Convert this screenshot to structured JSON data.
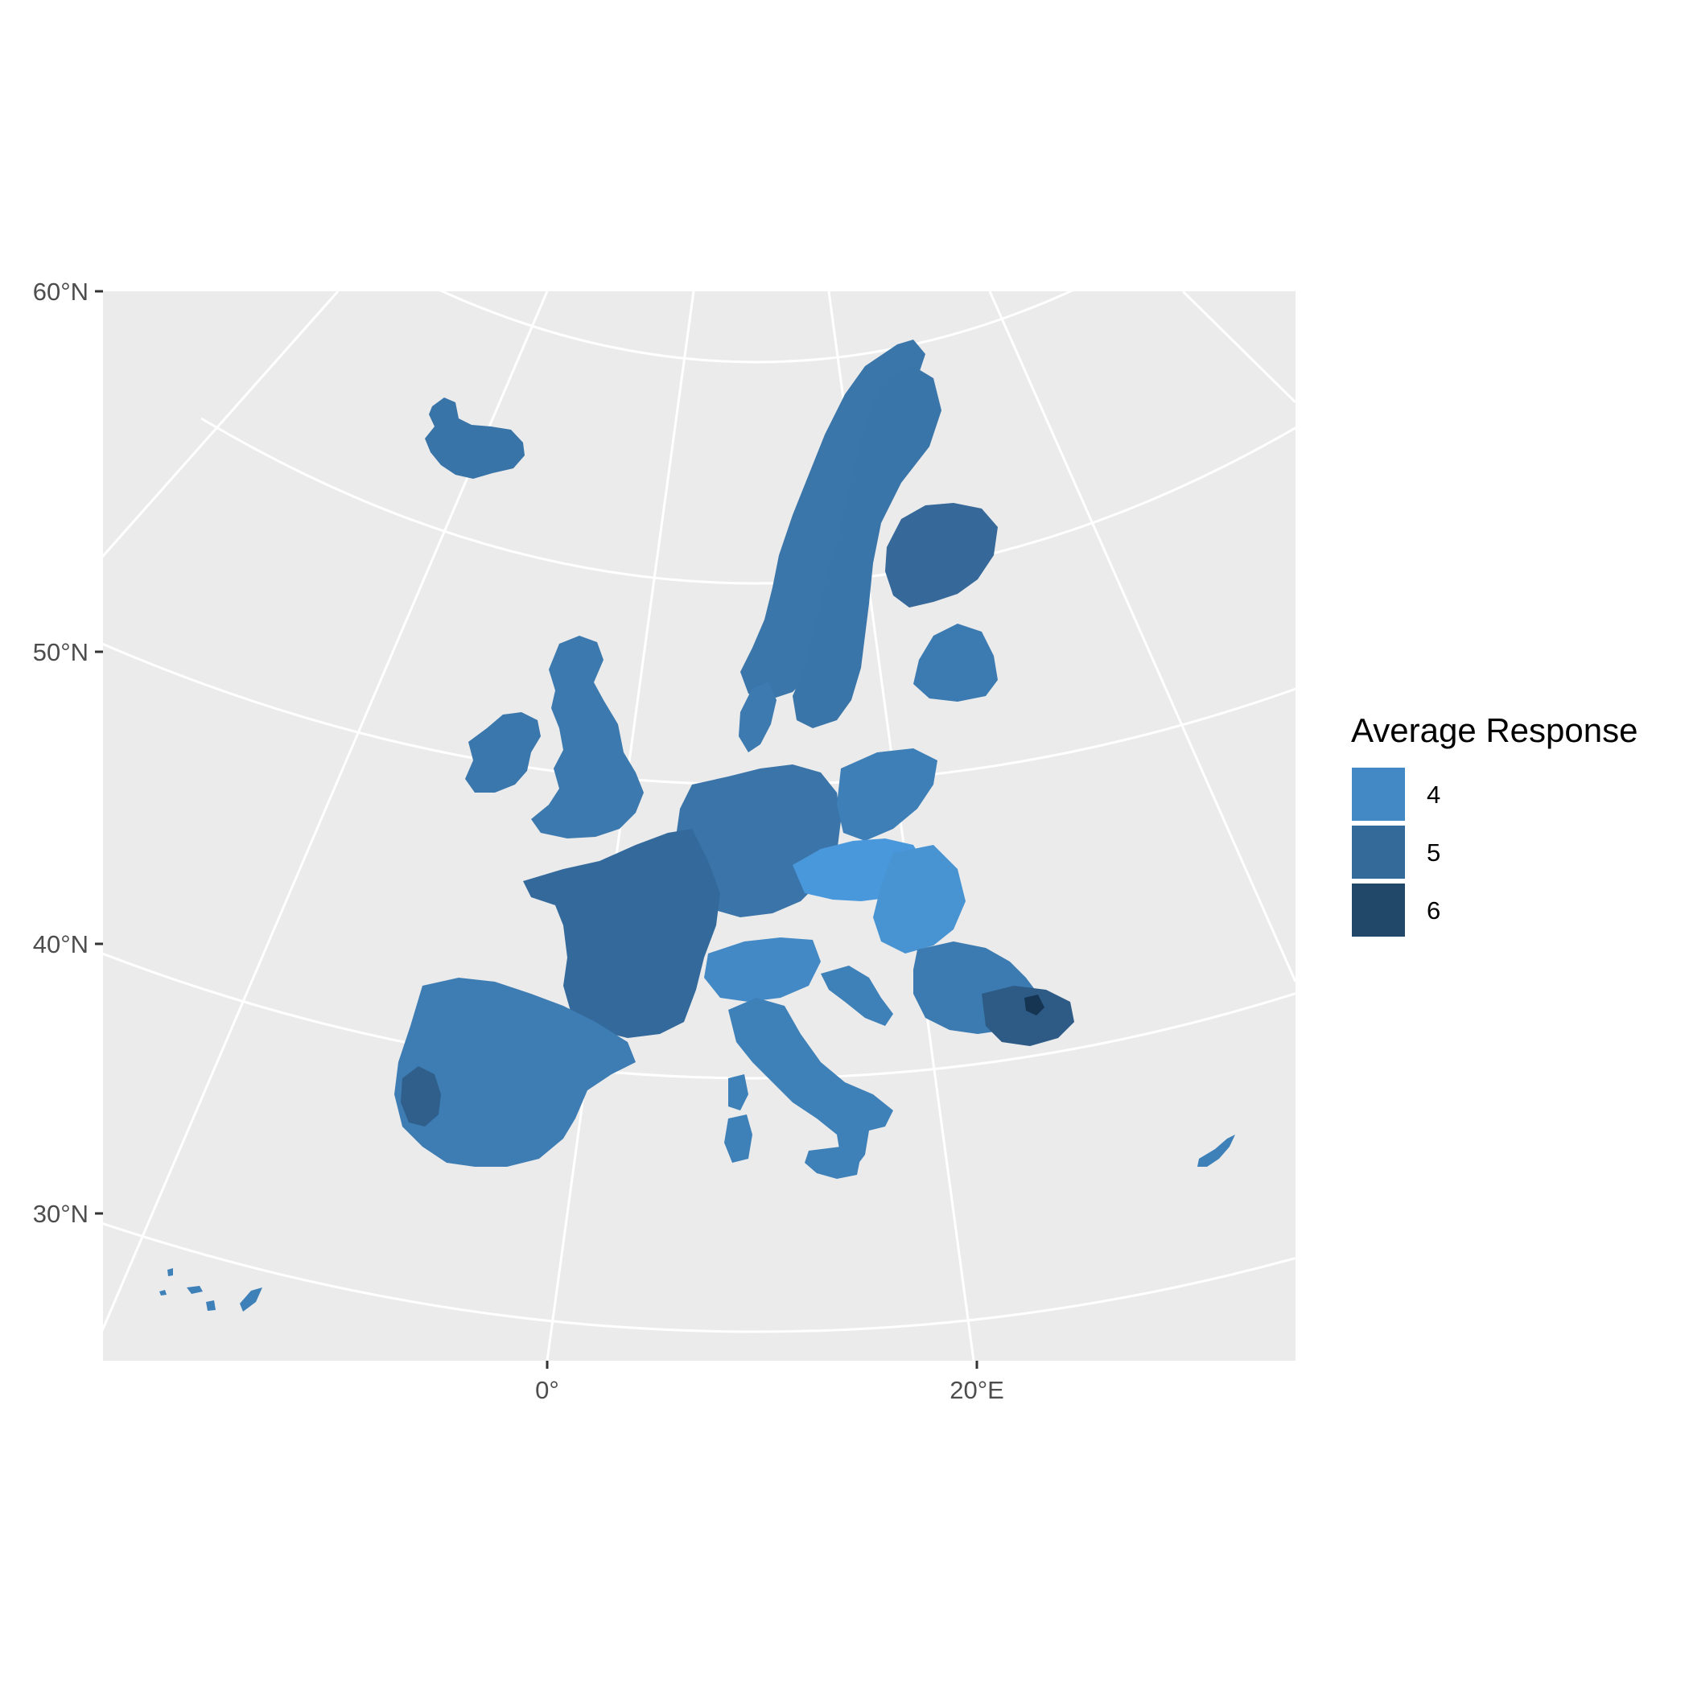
{
  "map": {
    "projection": "conic",
    "latitude_labels": [
      "60°N",
      "50°N",
      "40°N",
      "30°N"
    ],
    "longitude_labels": [
      "0°",
      "20°E"
    ],
    "background_color": "#ebebeb",
    "grid_color": "#ffffff"
  },
  "legend": {
    "title": "Average Response",
    "items": [
      {
        "label": "4",
        "color": "#4389c6"
      },
      {
        "label": "5",
        "color": "#336a99"
      },
      {
        "label": "6",
        "color": "#214869"
      }
    ]
  },
  "regions": [
    {
      "name": "Iceland",
      "fill": "#3874a8"
    },
    {
      "name": "Ireland",
      "fill": "#3a77ac"
    },
    {
      "name": "Great Britain",
      "fill": "#3b79ae"
    },
    {
      "name": "Norway",
      "fill": "#3b76aa"
    },
    {
      "name": "Sweden",
      "fill": "#3a75a9"
    },
    {
      "name": "Finland",
      "fill": "#36689a"
    },
    {
      "name": "Estonia/Latvia/Lithuania",
      "fill": "#3c7bb1"
    },
    {
      "name": "Denmark",
      "fill": "#3c7ab0"
    },
    {
      "name": "France",
      "fill": "#336a9b"
    },
    {
      "name": "Iberia",
      "fill": "#3d7db4"
    },
    {
      "name": "Portugal west",
      "fill": "#2f5f8a"
    },
    {
      "name": "Benelux/Germany",
      "fill": "#3a74a8"
    },
    {
      "name": "Poland",
      "fill": "#3d7fb6"
    },
    {
      "name": "Czechia/Slovakia",
      "fill": "#4a98dc"
    },
    {
      "name": "Hungary",
      "fill": "#4893d2"
    },
    {
      "name": "Austria/Switzerland",
      "fill": "#4389c6"
    },
    {
      "name": "Italy",
      "fill": "#3e80b8"
    },
    {
      "name": "Sardinia",
      "fill": "#3e80b8"
    },
    {
      "name": "Corsica",
      "fill": "#3e80b8"
    },
    {
      "name": "Sicily",
      "fill": "#3e80b8"
    },
    {
      "name": "Croatia/Slovenia",
      "fill": "#3e80b8"
    },
    {
      "name": "Romania",
      "fill": "#3c7bb1"
    },
    {
      "name": "Bulgaria",
      "fill": "#2d5b86"
    },
    {
      "name": "Bulgaria dark spot",
      "fill": "#163552"
    },
    {
      "name": "Cyprus",
      "fill": "#3e80b8"
    },
    {
      "name": "Canary Islands",
      "fill": "#3e80b8"
    }
  ]
}
